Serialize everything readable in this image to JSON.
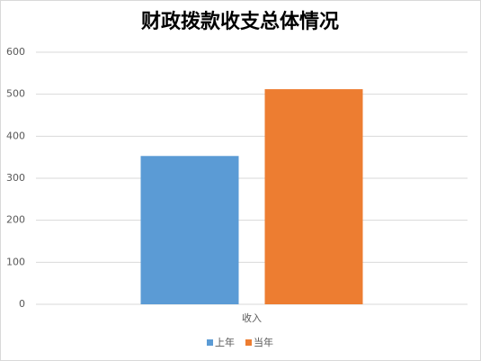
{
  "chart_data": {
    "type": "bar",
    "title": "财政拨款收支总体情况",
    "categories": [
      "收入"
    ],
    "series": [
      {
        "name": "上年",
        "color": "#5b9bd5",
        "values": [
          353
        ]
      },
      {
        "name": "当年",
        "color": "#ed7d31",
        "values": [
          512
        ]
      }
    ],
    "ylim": [
      0,
      600
    ],
    "yticks": [
      0,
      100,
      200,
      300,
      400,
      500,
      600
    ],
    "grid": true,
    "legend": "bottom"
  }
}
